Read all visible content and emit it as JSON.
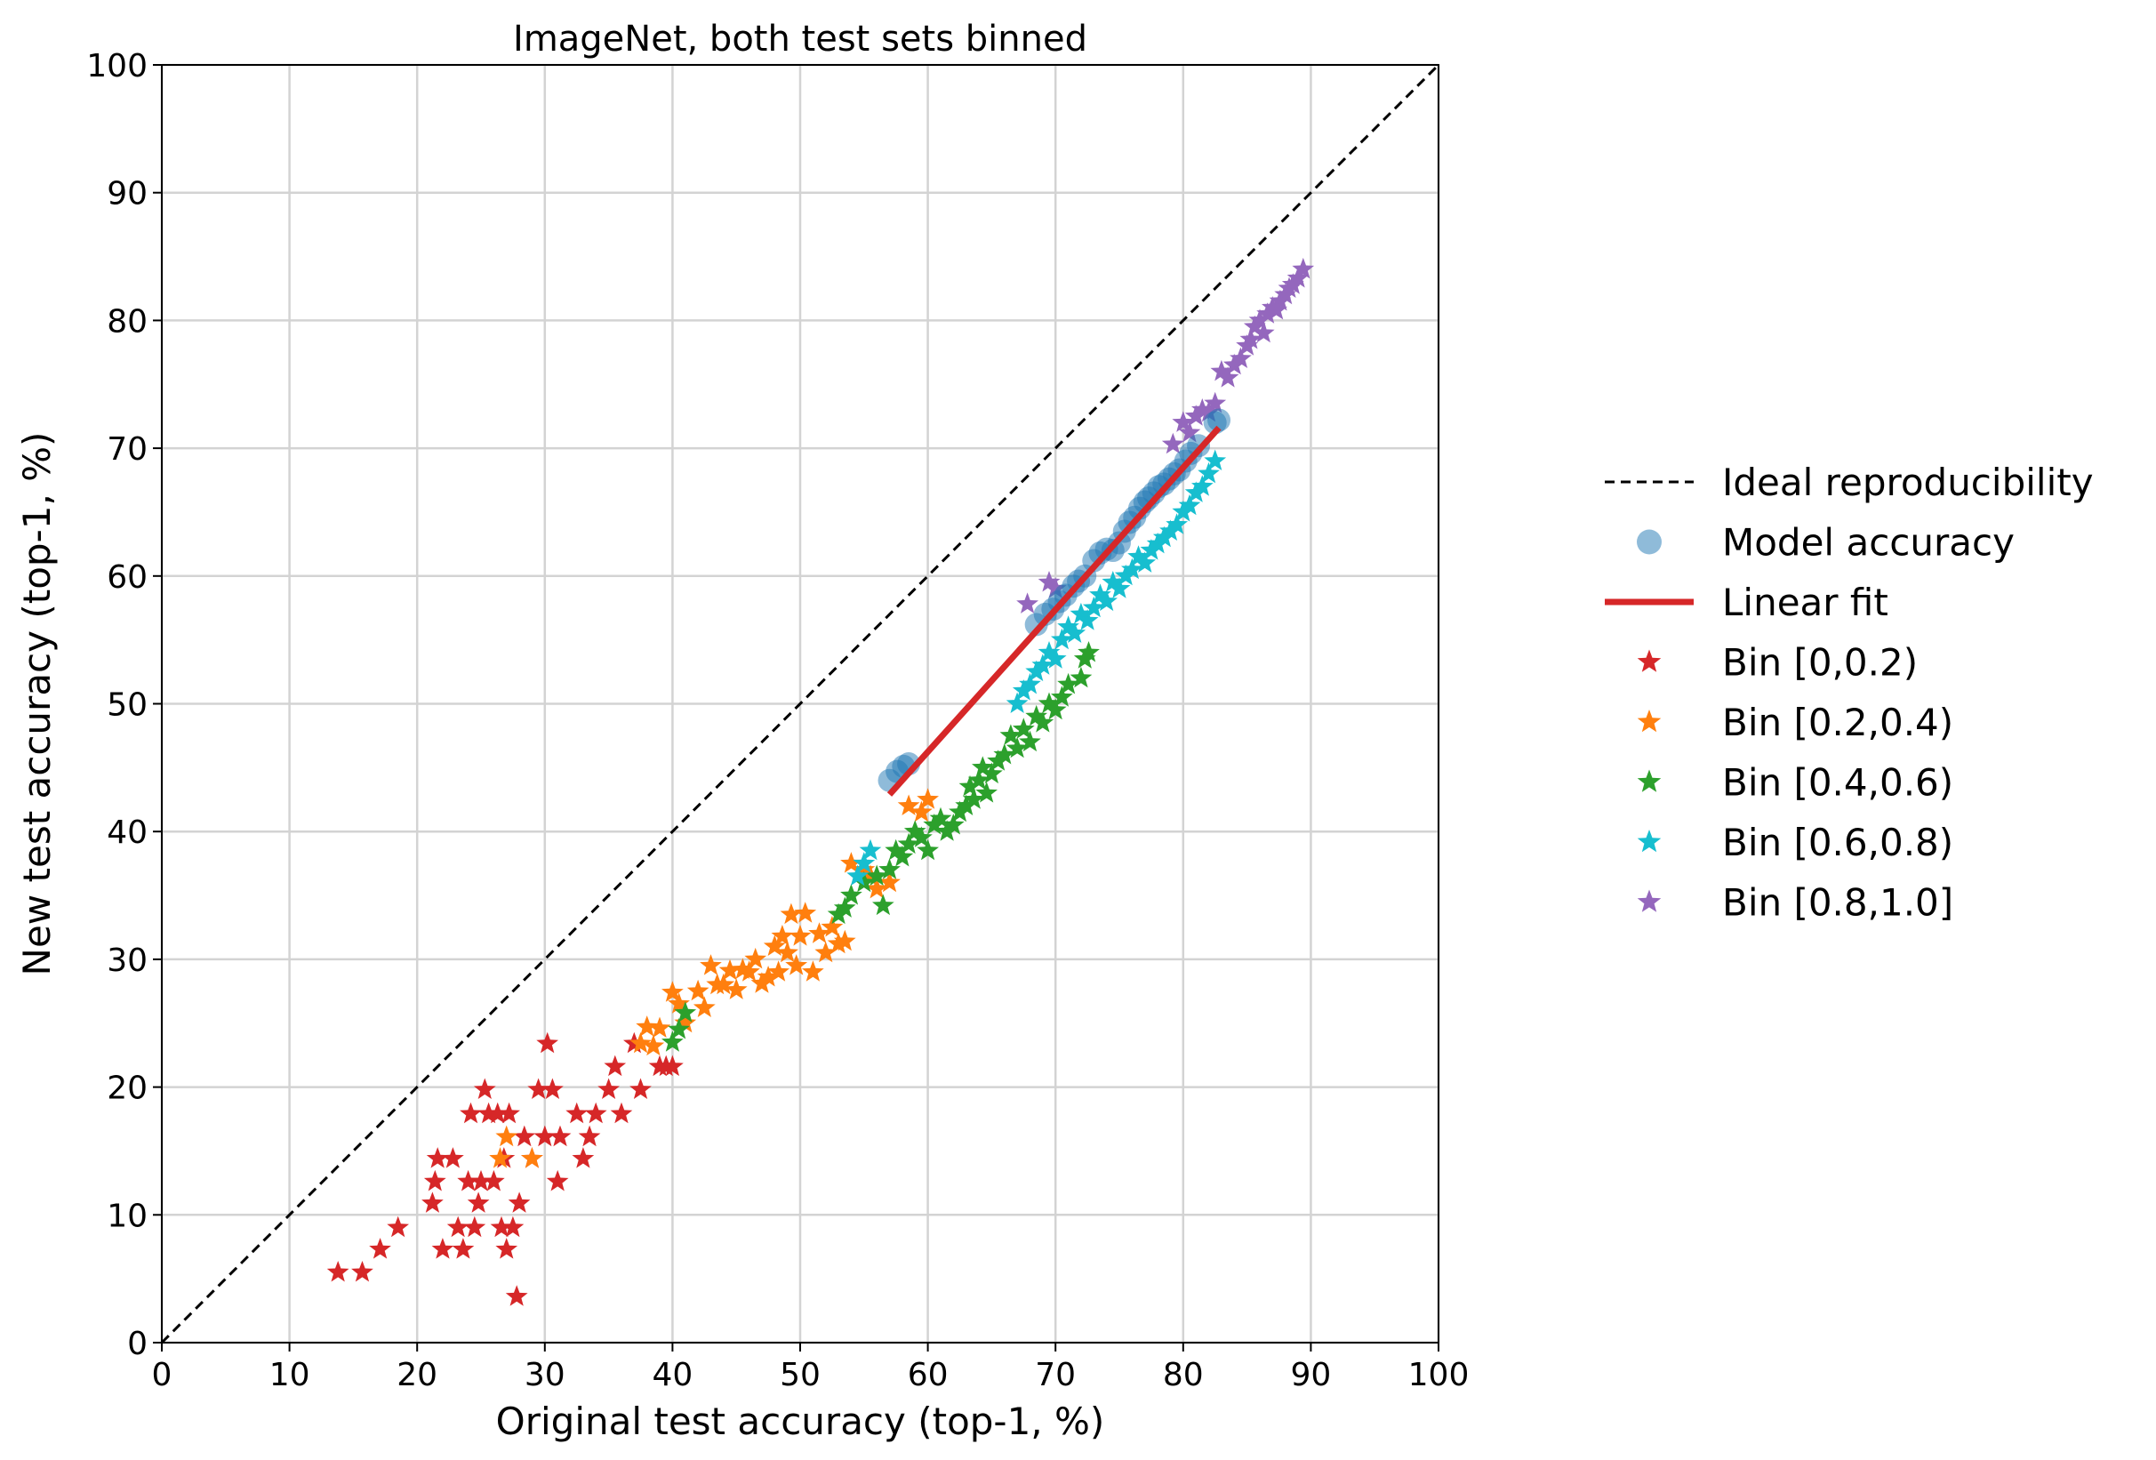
{
  "chart_data": {
    "type": "scatter",
    "title": "ImageNet, both test sets binned",
    "xlabel": "Original test accuracy (top-1, %)",
    "ylabel": "New test accuracy (top-1, %)",
    "xlim": [
      0,
      100
    ],
    "ylim": [
      0,
      100
    ],
    "xticks": [
      "0",
      "10",
      "20",
      "30",
      "40",
      "50",
      "60",
      "70",
      "80",
      "90",
      "100"
    ],
    "yticks": [
      "0",
      "10",
      "20",
      "30",
      "40",
      "50",
      "60",
      "70",
      "80",
      "90",
      "100"
    ],
    "grid": true,
    "legend_position": "right",
    "series": [
      {
        "name": "Ideal reproducibility",
        "kind": "dashed-line",
        "color": "#000000",
        "x": [
          0,
          100
        ],
        "y": [
          0,
          100
        ]
      },
      {
        "name": "Model accuracy",
        "kind": "circle",
        "color": "#1f77b4",
        "x": [
          57.0,
          57.6,
          58.1,
          58.5,
          68.5,
          69.2,
          69.8,
          70.3,
          70.8,
          71.4,
          71.8,
          72.3,
          73.0,
          73.5,
          74.0,
          74.5,
          75.0,
          75.4,
          75.8,
          76.2,
          76.6,
          77.0,
          77.3,
          77.7,
          78.1,
          78.5,
          78.9,
          79.3,
          79.7,
          80.2,
          80.6,
          81.2,
          82.5,
          82.8
        ],
        "y": [
          44.0,
          44.7,
          45.1,
          45.3,
          56.2,
          57.0,
          57.4,
          58.0,
          58.5,
          59.2,
          59.6,
          60.0,
          61.2,
          61.8,
          62.1,
          62.0,
          62.6,
          63.5,
          64.2,
          64.6,
          65.3,
          65.8,
          66.1,
          66.5,
          67.0,
          67.2,
          67.6,
          68.0,
          68.3,
          69.0,
          69.6,
          70.2,
          72.0,
          72.2
        ]
      },
      {
        "name": "Linear fit",
        "kind": "line",
        "color": "#d62728",
        "x": [
          57.0,
          82.8
        ],
        "y": [
          42.9,
          71.6
        ]
      },
      {
        "name": "Bin [0,0.2)",
        "kind": "star",
        "color": "#d62728",
        "x": [
          13.8,
          15.7,
          17.1,
          18.5,
          21.2,
          21.4,
          21.6,
          22.0,
          22.8,
          23.2,
          23.6,
          24.0,
          24.2,
          24.5,
          24.8,
          25.0,
          25.3,
          25.6,
          26.0,
          26.3,
          26.6,
          26.8,
          27.0,
          27.2,
          27.5,
          27.8,
          28.0,
          28.4,
          29.0,
          29.5,
          30.0,
          30.2,
          30.6,
          31.0,
          31.2,
          32.5,
          33.0,
          33.5,
          34.0,
          35.0,
          35.5,
          36.0,
          37.0,
          37.5,
          39.0,
          39.5,
          40.0
        ],
        "y": [
          5.5,
          5.5,
          7.3,
          9.0,
          10.9,
          12.6,
          14.4,
          7.3,
          14.4,
          9.0,
          7.3,
          12.6,
          17.9,
          9.0,
          10.9,
          12.6,
          19.8,
          17.9,
          12.6,
          17.9,
          9.0,
          14.4,
          7.3,
          17.9,
          9.0,
          3.6,
          10.9,
          16.1,
          14.4,
          19.8,
          16.1,
          23.4,
          19.8,
          12.6,
          16.1,
          17.9,
          14.4,
          16.1,
          17.9,
          19.8,
          21.6,
          17.9,
          23.4,
          19.8,
          21.6,
          21.6,
          21.6
        ]
      },
      {
        "name": "Bin [0.2,0.4)",
        "kind": "star",
        "color": "#ff7f0e",
        "x": [
          26.5,
          27.0,
          29.0,
          37.5,
          38.0,
          38.5,
          39.0,
          40.0,
          40.5,
          41.0,
          42.0,
          42.5,
          43.0,
          43.5,
          44.0,
          44.5,
          45.0,
          45.5,
          46.0,
          46.5,
          47.0,
          47.5,
          48.0,
          48.3,
          48.6,
          49.0,
          49.3,
          49.7,
          50.0,
          50.4,
          51.0,
          51.5,
          52.0,
          52.5,
          53.0,
          53.5,
          54.0,
          55.0,
          55.5,
          56.0,
          57.0,
          58.5,
          59.5,
          60.0
        ],
        "y": [
          14.4,
          16.1,
          14.4,
          23.4,
          24.7,
          23.2,
          24.6,
          27.4,
          26.5,
          25.0,
          27.5,
          26.2,
          29.5,
          28.0,
          28.0,
          29.1,
          27.6,
          29.2,
          29.0,
          30.0,
          28.1,
          28.6,
          31.0,
          29.0,
          31.8,
          30.5,
          33.5,
          29.5,
          31.8,
          33.6,
          29.0,
          32.0,
          30.5,
          32.5,
          31.2,
          31.4,
          37.5,
          37.0,
          36.5,
          35.5,
          36.0,
          42.0,
          41.5,
          42.5
        ]
      },
      {
        "name": "Bin [0.4,0.6)",
        "kind": "star",
        "color": "#2ca02c",
        "x": [
          40.0,
          40.5,
          41.0,
          53.0,
          53.5,
          54.0,
          55.0,
          56.0,
          56.5,
          57.0,
          57.5,
          58.0,
          58.5,
          59.0,
          59.5,
          60.0,
          60.5,
          61.0,
          61.5,
          62.0,
          62.5,
          63.0,
          63.3,
          63.6,
          64.0,
          64.3,
          64.6,
          65.0,
          65.5,
          66.0,
          66.5,
          67.0,
          67.5,
          68.0,
          68.5,
          69.0,
          69.5,
          70.0,
          70.5,
          71.0,
          72.0,
          72.3,
          72.6
        ],
        "y": [
          23.5,
          24.5,
          25.8,
          33.5,
          34.0,
          35.0,
          36.0,
          36.5,
          34.2,
          37.0,
          38.5,
          38.0,
          39.0,
          40.0,
          39.5,
          38.5,
          40.5,
          41.0,
          40.0,
          40.5,
          41.5,
          42.0,
          43.5,
          42.5,
          44.0,
          45.0,
          43.0,
          44.5,
          45.5,
          46.0,
          47.5,
          46.5,
          48.0,
          47.0,
          49.0,
          48.5,
          50.0,
          49.5,
          50.5,
          51.5,
          52.0,
          53.5,
          54.0
        ]
      },
      {
        "name": "Bin [0.6,0.8)",
        "kind": "star",
        "color": "#17becf",
        "x": [
          54.5,
          55.0,
          55.5,
          67.0,
          67.5,
          68.0,
          68.5,
          69.0,
          69.5,
          70.0,
          70.5,
          71.0,
          71.5,
          72.0,
          72.5,
          73.0,
          73.5,
          74.0,
          74.5,
          75.0,
          75.5,
          76.0,
          76.5,
          77.0,
          77.5,
          78.0,
          78.5,
          79.0,
          79.5,
          80.0,
          80.5,
          81.0,
          81.5,
          82.0,
          82.5
        ],
        "y": [
          36.5,
          37.5,
          38.5,
          50.0,
          51.0,
          51.5,
          52.5,
          53.0,
          54.0,
          53.5,
          55.0,
          56.0,
          55.5,
          57.0,
          56.5,
          57.5,
          58.5,
          58.0,
          59.5,
          59.0,
          60.0,
          60.5,
          61.5,
          61.0,
          62.0,
          62.5,
          63.0,
          63.5,
          64.0,
          65.0,
          65.5,
          66.5,
          67.0,
          68.0,
          69.0
        ]
      },
      {
        "name": "Bin [0.8,1.0]",
        "kind": "star",
        "color": "#9467bd",
        "x": [
          67.8,
          69.5,
          70.0,
          79.2,
          80.0,
          80.5,
          81.0,
          81.5,
          82.0,
          82.5,
          83.0,
          83.5,
          84.0,
          84.5,
          85.0,
          85.3,
          85.6,
          86.0,
          86.3,
          86.6,
          87.0,
          87.3,
          87.6,
          88.0,
          88.3,
          88.6,
          89.0,
          89.4
        ],
        "y": [
          57.8,
          59.5,
          59.0,
          70.3,
          72.0,
          71.2,
          72.5,
          73.0,
          72.8,
          73.5,
          76.0,
          75.5,
          76.5,
          77.0,
          78.0,
          78.5,
          79.5,
          80.0,
          79.0,
          80.5,
          81.0,
          80.8,
          81.5,
          82.0,
          82.5,
          82.8,
          83.3,
          84.0
        ]
      }
    ]
  }
}
